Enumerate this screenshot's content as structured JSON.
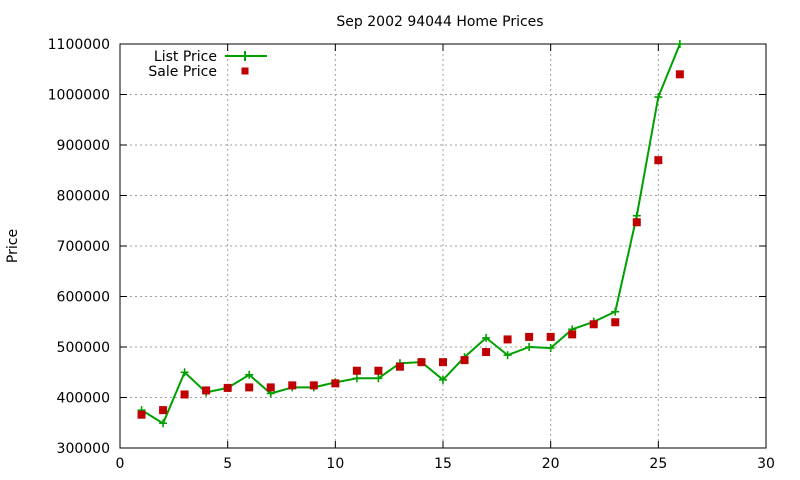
{
  "chart_data": {
    "type": "line",
    "title": "Sep 2002 94044 Home Prices",
    "xlabel": "",
    "ylabel": "Price",
    "xlim": [
      0,
      30
    ],
    "ylim": [
      300000,
      1100000
    ],
    "xticks": [
      0,
      5,
      10,
      15,
      20,
      25,
      30
    ],
    "yticks": [
      300000,
      400000,
      500000,
      600000,
      700000,
      800000,
      900000,
      1000000,
      1100000
    ],
    "grid": true,
    "legend_position": "top-left",
    "series": [
      {
        "name": "List Price",
        "style": "lines+crosses",
        "color": "#00a000",
        "x": [
          1,
          2,
          3,
          4,
          5,
          6,
          7,
          8,
          9,
          10,
          11,
          12,
          13,
          14,
          15,
          16,
          17,
          18,
          19,
          20,
          21,
          22,
          23,
          24,
          25,
          26
        ],
        "y": [
          375000,
          349000,
          450000,
          410000,
          419000,
          445000,
          408000,
          420000,
          420000,
          430000,
          438000,
          438000,
          468000,
          470000,
          435000,
          480000,
          518000,
          484000,
          500000,
          498000,
          535000,
          550000,
          570000,
          760000,
          995000,
          1100000
        ]
      },
      {
        "name": "Sale Price",
        "style": "points",
        "color": "#c00000",
        "x": [
          1,
          2,
          3,
          4,
          5,
          6,
          7,
          8,
          9,
          10,
          11,
          12,
          13,
          14,
          15,
          16,
          17,
          18,
          19,
          20,
          21,
          22,
          23,
          24,
          25,
          26
        ],
        "y": [
          366000,
          375000,
          406000,
          414000,
          419000,
          420000,
          420000,
          424000,
          424000,
          428000,
          453000,
          453000,
          461000,
          470000,
          470000,
          474000,
          490000,
          515000,
          520000,
          520000,
          525000,
          545000,
          549000,
          747000,
          870000,
          1040000
        ]
      }
    ]
  }
}
